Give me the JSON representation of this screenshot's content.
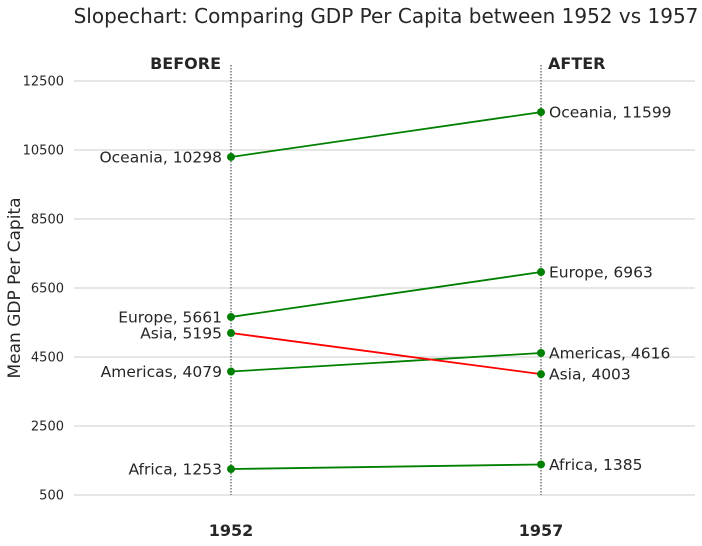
{
  "chart_data": {
    "type": "line",
    "title": "Slopechart: Comparing GDP Per Capita between 1952 vs 1957",
    "ylabel": "Mean GDP Per Capita",
    "xlabel": "",
    "x": [
      "1952",
      "1957"
    ],
    "ylim": [
      0,
      14000
    ],
    "yticks": [
      500,
      2500,
      4500,
      6500,
      8500,
      10500,
      12500
    ],
    "header_before": "BEFORE",
    "header_after": "AFTER",
    "grid": true,
    "series": [
      {
        "name": "Africa",
        "values": [
          1253,
          1385
        ],
        "color": "#008000"
      },
      {
        "name": "Americas",
        "values": [
          4079,
          4616
        ],
        "color": "#008000"
      },
      {
        "name": "Asia",
        "values": [
          5195,
          4003
        ],
        "color": "#ff0000"
      },
      {
        "name": "Europe",
        "values": [
          5661,
          6963
        ],
        "color": "#008000"
      },
      {
        "name": "Oceania",
        "values": [
          10298,
          11599
        ],
        "color": "#008000"
      }
    ],
    "colors": {
      "increase": "#008000",
      "decrease": "#ff0000",
      "grid": "#cccccc",
      "text": "#262626"
    }
  }
}
